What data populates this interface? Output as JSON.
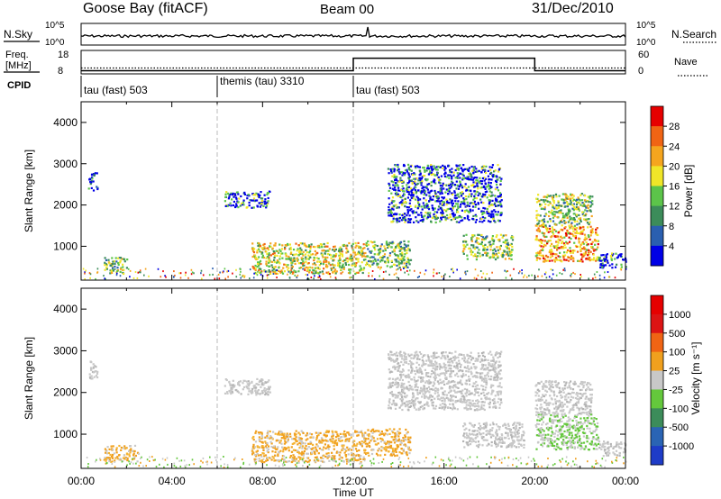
{
  "header": {
    "station": "Goose Bay (fitACF)",
    "beam": "Beam 00",
    "date": "31/Dec/2010"
  },
  "noise_panel": {
    "left_label": "N.Sky",
    "right_label": "N.Search",
    "left_ticks": [
      "10^5",
      "10^0"
    ],
    "right_ticks": [
      "10^5",
      "10^0"
    ]
  },
  "freq_panel": {
    "left_label_line1": "Freq.",
    "left_label_line2": "[MHz]",
    "left_ticks": [
      "18",
      "8"
    ],
    "right_label": "Nave",
    "right_ticks": [
      "60",
      "0"
    ]
  },
  "cpid_panel": {
    "label": "CPID",
    "segments": [
      "tau (fast) 503",
      "themis (tau) 3310",
      "tau (fast) 503"
    ]
  },
  "power_panel": {
    "ylabel": "Slant Range [km]",
    "yticks": [
      "1000",
      "2000",
      "3000",
      "4000"
    ],
    "colorbar_label": "Power [dB]",
    "colorbar_ticks": [
      "4",
      "8",
      "12",
      "16",
      "20",
      "24",
      "28"
    ],
    "colorbar_colors": [
      "#0000e6",
      "#2a5fb0",
      "#3c8c5a",
      "#5cc44a",
      "#f0e628",
      "#f5a51e",
      "#f06414",
      "#e60000"
    ]
  },
  "velocity_panel": {
    "ylabel": "Slant Range [km]",
    "yticks": [
      "1000",
      "2000",
      "3000",
      "4000"
    ],
    "colorbar_label": "Velocity [m s⁻¹]",
    "colorbar_ticks": [
      "1000",
      "500",
      "100",
      "25",
      "-25",
      "-100",
      "-500",
      "-1000"
    ],
    "colorbar_colors": [
      "#1e3cc8",
      "#2a64b4",
      "#3c8c5a",
      "#64c83c",
      "#c8c8c8",
      "#f0a01e",
      "#f06414",
      "#dc1414",
      "#e60000"
    ]
  },
  "xaxis": {
    "label": "Time UT",
    "ticks": [
      "00:00",
      "04:00",
      "08:00",
      "12:00",
      "16:00",
      "20:00",
      "00:00"
    ]
  },
  "chart_data": {
    "type": "heatmap",
    "x_range_hours": [
      0,
      24
    ],
    "y_range_km": [
      180,
      4500
    ],
    "vertical_markers_hours": [
      6,
      12
    ],
    "frequency_steps": [
      {
        "x_start": 0,
        "x_end": 20,
        "value_mhz": 10.5
      },
      {
        "x_start": 20,
        "x_end": 24,
        "value_mhz": 10.5
      }
    ],
    "nave_steps": [
      {
        "x_start": 0,
        "x_end": 12,
        "value": 8
      },
      {
        "x_start": 12,
        "x_end": 20,
        "value": 40
      },
      {
        "x_start": 20,
        "x_end": 24,
        "value": 8
      }
    ],
    "cpid_boundaries_hours": [
      6,
      12
    ],
    "power_blobs": [
      {
        "t0": 0.3,
        "t1": 0.7,
        "r0": 2350,
        "r1": 2800,
        "level": 1
      },
      {
        "t0": 1.0,
        "t1": 2.0,
        "r0": 350,
        "r1": 750,
        "level": 3
      },
      {
        "t0": 6.3,
        "t1": 8.3,
        "r0": 1950,
        "r1": 2350,
        "level": 2
      },
      {
        "t0": 7.5,
        "t1": 12.5,
        "r0": 350,
        "r1": 1100,
        "level": 4
      },
      {
        "t0": 12.5,
        "t1": 14.5,
        "r0": 500,
        "r1": 1150,
        "level": 3
      },
      {
        "t0": 13.5,
        "t1": 18.5,
        "r0": 1600,
        "r1": 3000,
        "level": 2
      },
      {
        "t0": 16.8,
        "t1": 19.0,
        "r0": 700,
        "r1": 1300,
        "level": 3
      },
      {
        "t0": 20.0,
        "t1": 22.8,
        "r0": 650,
        "r1": 1500,
        "level": 5
      },
      {
        "t0": 20.0,
        "t1": 22.5,
        "r0": 1500,
        "r1": 2300,
        "level": 3
      },
      {
        "t0": 22.8,
        "t1": 24.0,
        "r0": 500,
        "r1": 850,
        "level": 2
      }
    ],
    "velocity_blobs": [
      {
        "t0": 0.3,
        "t1": 0.7,
        "r0": 2350,
        "r1": 2800,
        "cls": "grey"
      },
      {
        "t0": 1.0,
        "t1": 2.5,
        "r0": 350,
        "r1": 750,
        "cls": "orange"
      },
      {
        "t0": 6.3,
        "t1": 8.3,
        "r0": 1950,
        "r1": 2350,
        "cls": "grey"
      },
      {
        "t0": 7.5,
        "t1": 12.5,
        "r0": 350,
        "r1": 1100,
        "cls": "orange"
      },
      {
        "t0": 12.5,
        "t1": 14.5,
        "r0": 500,
        "r1": 1150,
        "cls": "orange"
      },
      {
        "t0": 13.5,
        "t1": 18.5,
        "r0": 1600,
        "r1": 3000,
        "cls": "grey"
      },
      {
        "t0": 16.8,
        "t1": 19.5,
        "r0": 700,
        "r1": 1300,
        "cls": "grey"
      },
      {
        "t0": 20.0,
        "t1": 22.8,
        "r0": 650,
        "r1": 1500,
        "cls": "green"
      },
      {
        "t0": 20.0,
        "t1": 22.5,
        "r0": 1500,
        "r1": 2300,
        "cls": "grey"
      },
      {
        "t0": 22.8,
        "t1": 24.0,
        "r0": 500,
        "r1": 850,
        "cls": "grey"
      }
    ]
  }
}
